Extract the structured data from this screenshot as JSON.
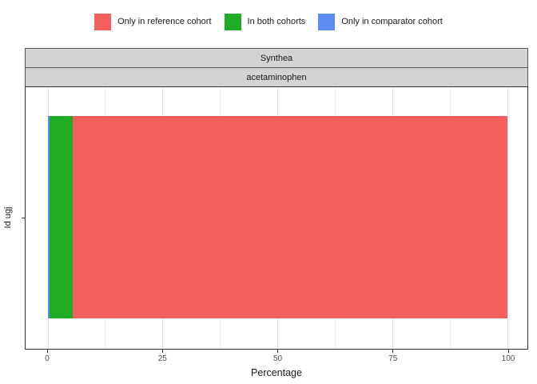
{
  "legend": {
    "items": [
      {
        "label": "Only in reference cohort",
        "color": "#f25f5c"
      },
      {
        "label": "In both cohorts",
        "color": "#1fab24"
      },
      {
        "label": "Only in comparator cohort",
        "color": "#5c8bf2"
      }
    ]
  },
  "facets": {
    "strip_top": "Synthea",
    "strip_bottom": "acetaminophen"
  },
  "y_axis": {
    "label": "Id ugj"
  },
  "x_axis": {
    "title": "Percentage",
    "tick_labels": [
      "0",
      "25",
      "50",
      "75",
      "100"
    ],
    "tick_values": [
      0,
      25,
      50,
      75,
      100
    ]
  },
  "chart_data": {
    "type": "bar",
    "orientation": "horizontal",
    "stacked": true,
    "title": "",
    "xlabel": "Percentage",
    "ylabel": "Id ugj",
    "xlim": [
      0,
      100
    ],
    "categories": [
      "Id ugj"
    ],
    "facets": [
      "Synthea",
      "acetaminophen"
    ],
    "legend_position": "top",
    "grid": {
      "vertical_lines_every": 12.5,
      "major_every": 25,
      "horizontal_line_at_category": true
    },
    "series": [
      {
        "name": "Only in comparator cohort",
        "values": [
          0.4
        ],
        "color": "#5c8bf2"
      },
      {
        "name": "In both cohorts",
        "values": [
          5.0
        ],
        "color": "#1fab24"
      },
      {
        "name": "Only in reference cohort",
        "values": [
          94.6
        ],
        "color": "#f25f5c"
      }
    ]
  },
  "colors": {
    "strip_background": "#d3d3d3",
    "strip_border": "#595959",
    "panel_border": "#333333",
    "gridline_major": "#e3e3e3",
    "gridline_minor": "#efefef",
    "tick_text": "#4d4d4d",
    "text": "#1a1a1a"
  }
}
